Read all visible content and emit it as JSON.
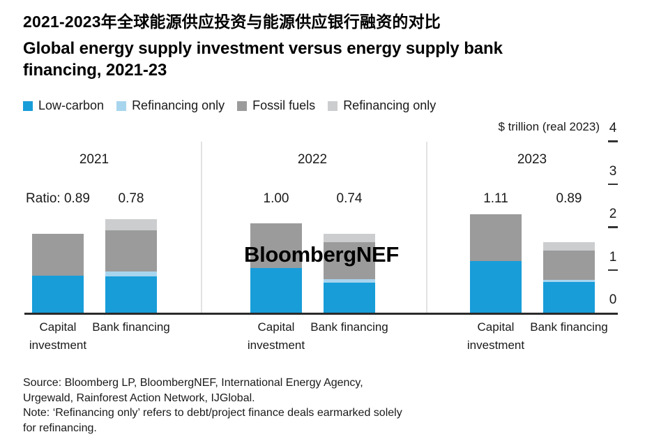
{
  "header": {
    "title_zh": "2021-2023年全球能源供应投资与能源供应银行融资的对比",
    "title_en": "Global energy supply investment versus energy supply bank\nfinancing, 2021-23"
  },
  "watermark": "BloombergNEF",
  "footer": {
    "lines": [
      "Source: Bloomberg LP, BloombergNEF, International Energy Agency,",
      "Urgewald, Rainforest Action Network, IJGlobal.",
      "Note: ‘Refinancing only’ refers to debt/project finance deals earmarked solely",
      "for refinancing."
    ]
  },
  "colors": {
    "low_carbon": "#189DD9",
    "refinancing_only_low_carbon": "#A8D5EE",
    "fossil_fuels": "#9B9B9B",
    "refinancing_only_fossil": "#CCCDCE",
    "separator": "#E2E2E2",
    "axis": "#2B2B2B"
  },
  "chart_data": {
    "type": "bar",
    "stacked": true,
    "title": "Global energy supply investment versus energy supply bank financing, 2021-23",
    "title_zh": "2021-2023年全球能源供应投资与能源供应银行融资的对比",
    "ylabel": "$ trillion (real 2023)",
    "ylim": [
      0,
      4
    ],
    "yticks": [
      0,
      1,
      2,
      3,
      4
    ],
    "legend_position": "top-left",
    "grid": false,
    "segment_keys": [
      "low_carbon",
      "refinancing_only_low_carbon",
      "fossil_fuels",
      "refinancing_only_fossil"
    ],
    "legend": [
      {
        "label": "Low-carbon",
        "color": "#189DD9"
      },
      {
        "label": "Refinancing only",
        "color": "#A8D5EE"
      },
      {
        "label": "Fossil fuels",
        "color": "#9B9B9B"
      },
      {
        "label": "Refinancing only",
        "color": "#CCCDCE"
      }
    ],
    "groups": [
      {
        "year": "2021",
        "bars": [
          {
            "category": "Capital investment",
            "ratio_label": "Ratio: 0.89",
            "values": [
              0.86,
              0,
              0.97,
              0
            ],
            "total": 1.83
          },
          {
            "category": "Bank financing",
            "ratio_label": "0.78",
            "values": [
              0.85,
              0.11,
              0.96,
              0.26
            ],
            "total": 2.18
          }
        ]
      },
      {
        "year": "2022",
        "bars": [
          {
            "category": "Capital investment",
            "ratio_label": "1.00",
            "values": [
              1.04,
              0,
              1.04,
              0
            ],
            "total": 2.08
          },
          {
            "category": "Bank financing",
            "ratio_label": "0.74",
            "values": [
              0.7,
              0.08,
              0.86,
              0.2
            ],
            "total": 1.84
          }
        ]
      },
      {
        "year": "2023",
        "bars": [
          {
            "category": "Capital investment",
            "ratio_label": "1.11",
            "values": [
              1.21,
              0,
              1.09,
              0
            ],
            "total": 2.3
          },
          {
            "category": "Bank financing",
            "ratio_label": "0.89",
            "values": [
              0.72,
              0.05,
              0.67,
              0.2
            ],
            "total": 1.64
          }
        ]
      }
    ]
  }
}
